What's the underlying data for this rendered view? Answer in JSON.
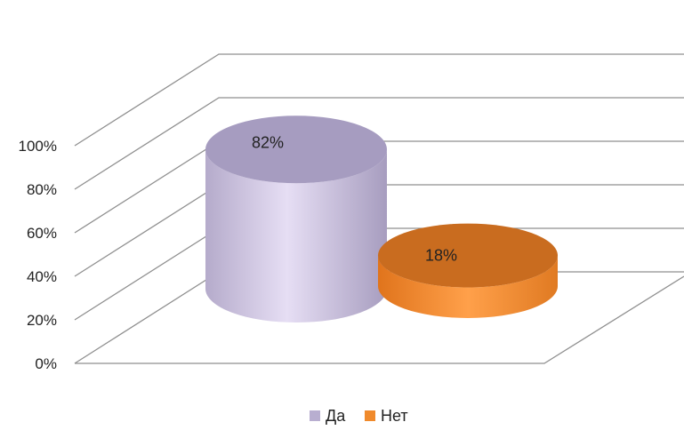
{
  "chart_data": {
    "type": "bar",
    "style": "3d-cylinder",
    "categories": [
      "Да",
      "Нет"
    ],
    "values": [
      82,
      18
    ],
    "data_labels": [
      "82%",
      "18%"
    ],
    "colors": [
      "#c8bedc",
      "#f08a2c"
    ],
    "ylim": [
      0,
      100
    ],
    "yticks": [
      "0%",
      "20%",
      "40%",
      "60%",
      "80%",
      "100%"
    ],
    "grid": true,
    "legend": {
      "position": "bottom",
      "items": [
        {
          "label": "Да",
          "color": "#b8aed0"
        },
        {
          "label": "Нет",
          "color": "#f08a2c"
        }
      ]
    }
  }
}
